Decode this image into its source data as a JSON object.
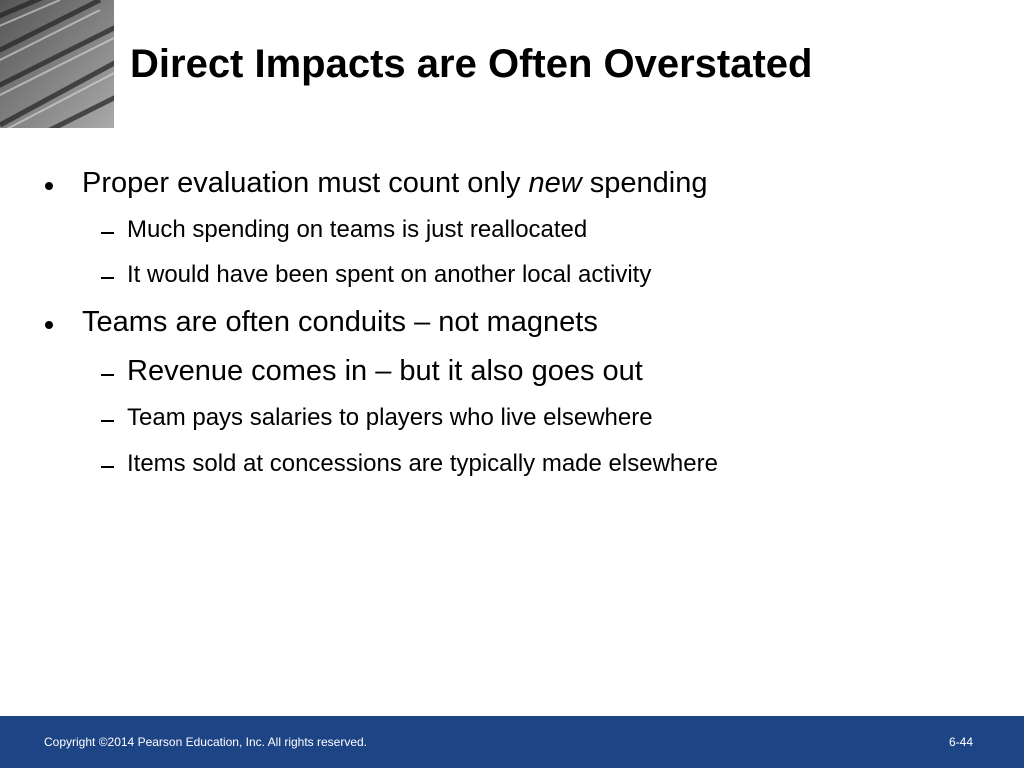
{
  "title": "Direct Impacts are Often Overstated",
  "bullets": [
    {
      "parts": [
        "Proper evaluation must count only ",
        "new",
        " spending"
      ],
      "subs": [
        "Much spending on teams is just reallocated",
        "It would have been spent on another local activity"
      ]
    },
    {
      "parts": [
        "Teams are often conduits – not magnets"
      ],
      "subs": [
        "Revenue comes in – but it also goes out",
        "Team pays salaries to players who live elsewhere",
        "Items sold at concessions are typically made elsewhere"
      ]
    }
  ],
  "footer": {
    "copyright": "Copyright ©2014 Pearson Education, Inc. All rights reserved.",
    "page": "6-44"
  }
}
